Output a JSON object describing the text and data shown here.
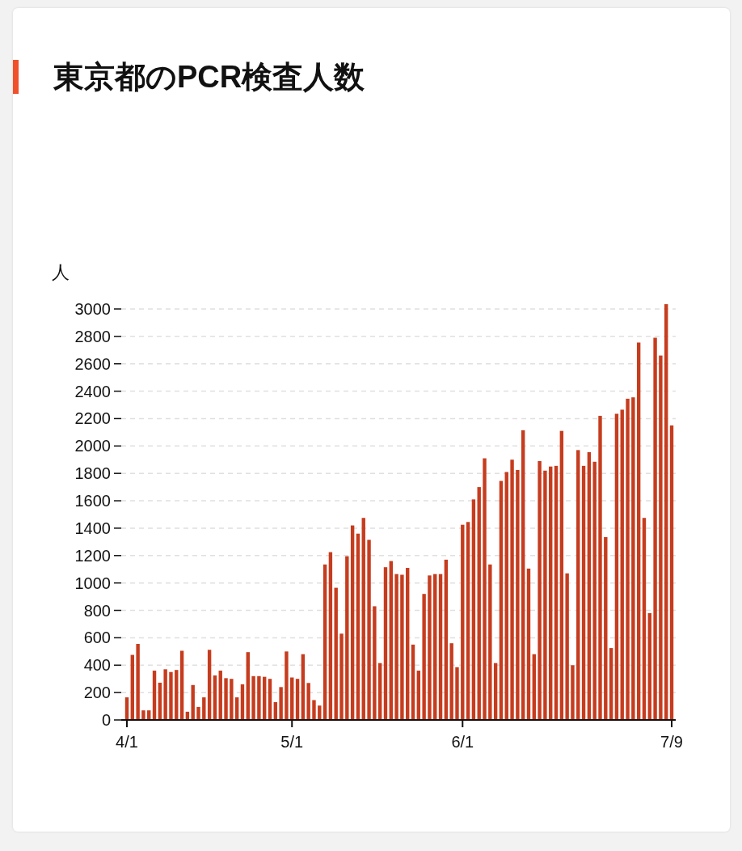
{
  "chart_data": {
    "type": "bar",
    "title": "東京都のPCR検査人数",
    "ylabel": "人",
    "color": "#c63c1e",
    "categories": [
      "4/1",
      null,
      null,
      null,
      null,
      null,
      null,
      null,
      null,
      null,
      null,
      null,
      null,
      null,
      null,
      null,
      null,
      null,
      null,
      null,
      null,
      null,
      null,
      null,
      null,
      null,
      null,
      null,
      null,
      null,
      "5/1",
      null,
      null,
      null,
      null,
      null,
      null,
      null,
      null,
      null,
      null,
      null,
      null,
      null,
      null,
      null,
      null,
      null,
      null,
      null,
      null,
      null,
      null,
      null,
      null,
      null,
      null,
      null,
      null,
      null,
      null,
      "6/1",
      null,
      null,
      null,
      null,
      null,
      null,
      null,
      null,
      null,
      null,
      null,
      null,
      null,
      null,
      null,
      null,
      null,
      null,
      null,
      null,
      null,
      null,
      null,
      null,
      null,
      null,
      null,
      null,
      null,
      null,
      null,
      null,
      null,
      null,
      null,
      null,
      null,
      "7/9"
    ],
    "values": [
      165,
      475,
      555,
      70,
      70,
      360,
      272,
      370,
      350,
      365,
      505,
      60,
      255,
      95,
      165,
      512,
      325,
      360,
      305,
      300,
      165,
      260,
      495,
      320,
      320,
      315,
      300,
      130,
      240,
      500,
      310,
      300,
      480,
      270,
      145,
      105,
      1135,
      1225,
      965,
      630,
      1195,
      1420,
      1360,
      1475,
      1315,
      830,
      415,
      1115,
      1160,
      1065,
      1060,
      1110,
      550,
      360,
      920,
      1055,
      1065,
      1065,
      1170,
      560,
      385,
      1425,
      1445,
      1610,
      1700,
      1910,
      1135,
      415,
      1745,
      1810,
      1900,
      1825,
      2115,
      1105,
      480,
      1890,
      1820,
      1850,
      1855,
      2110,
      1070,
      400,
      1970,
      1855,
      1955,
      1885,
      2220,
      1335,
      525,
      2235,
      2265,
      2345,
      2355,
      2755,
      1475,
      780,
      2790,
      2660,
      3035,
      2150
    ],
    "ylim": [
      0,
      3050
    ],
    "yticks": [
      0,
      200,
      400,
      600,
      800,
      1000,
      1200,
      1400,
      1600,
      1800,
      2000,
      2200,
      2400,
      2600,
      2800,
      3000
    ],
    "grid": "y"
  }
}
